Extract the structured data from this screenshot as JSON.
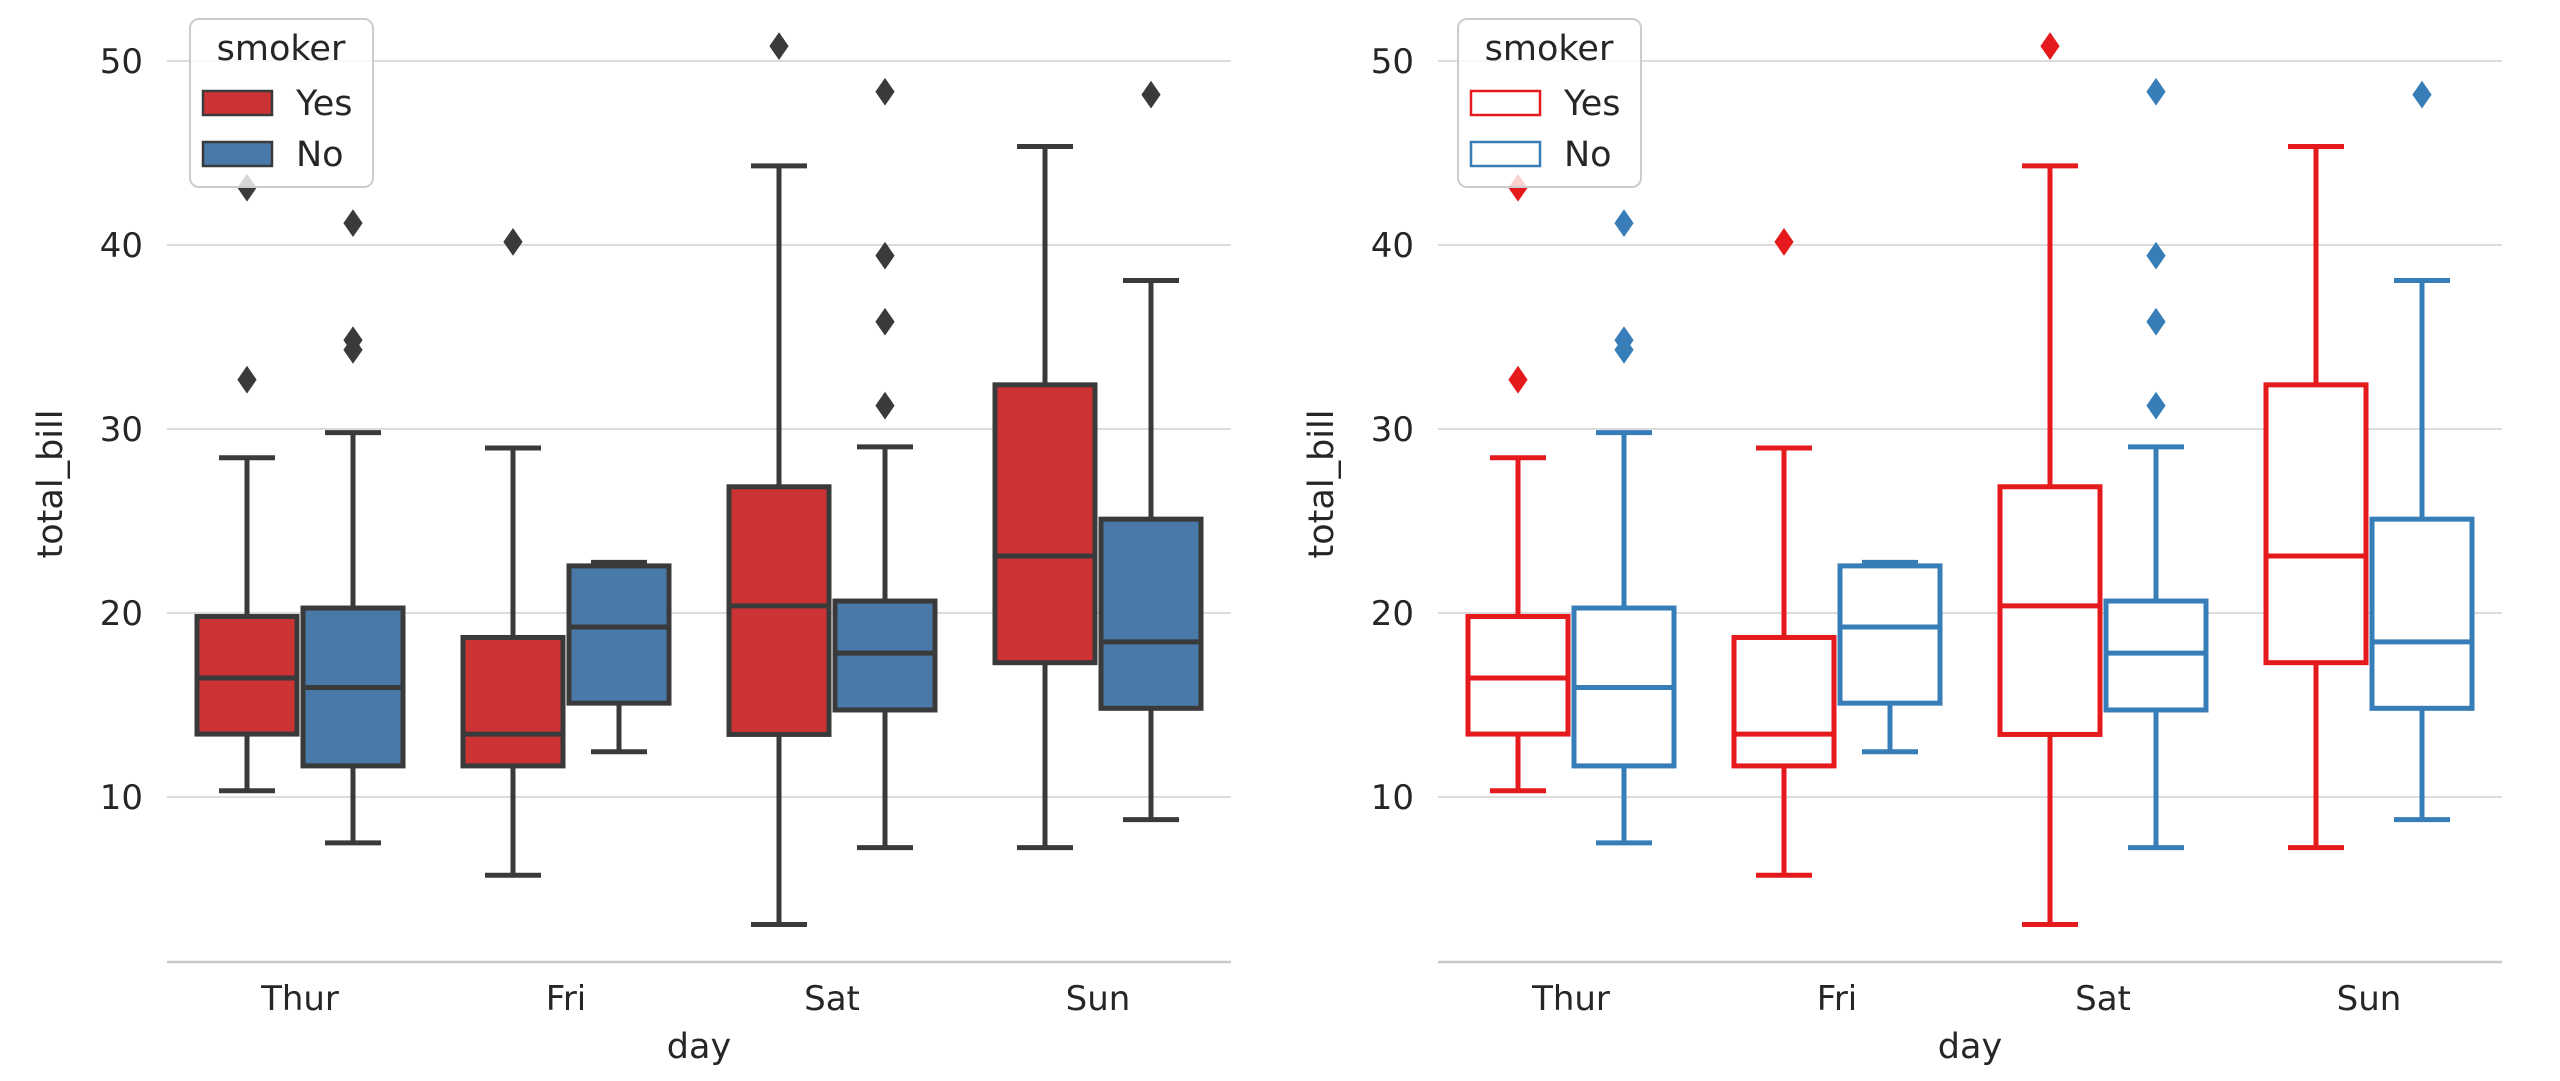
{
  "figure": {
    "background": "#FFFFFF",
    "text_color": "#262626",
    "grid_color": "#DCDCDC",
    "spine_color": "#C9C9C9",
    "legend_border_color": "#CCCCCC",
    "dark_line_color": "#3A3A3A",
    "accent_red": "#E41A1C",
    "accent_blue": "#377EB8",
    "desaturated_red": "#CB3334",
    "desaturated_blue": "#4979A8"
  },
  "chart_data": [
    {
      "panel": "left",
      "type": "boxplot",
      "style": "filled",
      "title": "",
      "xlabel": "day",
      "ylabel": "total_bill",
      "categories": [
        "Thur",
        "Fri",
        "Sat",
        "Sun"
      ],
      "yticks": [
        10,
        20,
        30,
        40,
        50
      ],
      "ylim": [
        1.0,
        53.0
      ],
      "grid": true,
      "legend": {
        "title": "smoker",
        "position": "upper left",
        "labels": [
          "Yes",
          "No"
        ]
      },
      "hue": "smoker",
      "series": [
        {
          "name": "Yes",
          "fill": "#CB3334",
          "stroke": "#3A3A3A",
          "flier_color": "#3A3A3A",
          "boxes": [
            {
              "category": "Thur",
              "whislo": 10.34,
              "q1": 13.42,
              "med": 16.47,
              "q3": 19.81,
              "whishi": 28.44,
              "outliers": [
                32.68,
                43.11
              ]
            },
            {
              "category": "Fri",
              "whislo": 5.75,
              "q1": 11.69,
              "med": 13.42,
              "q3": 18.67,
              "whishi": 28.97,
              "outliers": [
                40.17
              ]
            },
            {
              "category": "Sat",
              "whislo": 3.07,
              "q1": 13.4,
              "med": 20.39,
              "q3": 26.86,
              "whishi": 44.3,
              "outliers": [
                50.81
              ]
            },
            {
              "category": "Sun",
              "whislo": 7.25,
              "q1": 17.3,
              "med": 23.1,
              "q3": 32.4,
              "whishi": 45.35,
              "outliers": []
            }
          ]
        },
        {
          "name": "No",
          "fill": "#4979A8",
          "stroke": "#3A3A3A",
          "flier_color": "#3A3A3A",
          "boxes": [
            {
              "category": "Thur",
              "whislo": 7.51,
              "q1": 11.69,
              "med": 15.95,
              "q3": 20.27,
              "whishi": 29.8,
              "outliers": [
                34.3,
                34.83,
                41.19
              ]
            },
            {
              "category": "Fri",
              "whislo": 12.46,
              "q1": 15.1,
              "med": 19.24,
              "q3": 22.56,
              "whishi": 22.75,
              "outliers": []
            },
            {
              "category": "Sat",
              "whislo": 7.25,
              "q1": 14.73,
              "med": 17.82,
              "q3": 20.65,
              "whishi": 29.03,
              "outliers": [
                31.27,
                35.83,
                39.42,
                48.33
              ]
            },
            {
              "category": "Sun",
              "whislo": 8.77,
              "q1": 14.82,
              "med": 18.43,
              "q3": 25.1,
              "whishi": 38.07,
              "outliers": [
                48.17
              ]
            }
          ]
        }
      ]
    },
    {
      "panel": "right",
      "type": "boxplot",
      "style": "outline",
      "title": "",
      "xlabel": "day",
      "ylabel": "total_bill",
      "categories": [
        "Thur",
        "Fri",
        "Sat",
        "Sun"
      ],
      "yticks": [
        10,
        20,
        30,
        40,
        50
      ],
      "ylim": [
        1.0,
        53.0
      ],
      "grid": true,
      "legend": {
        "title": "smoker",
        "position": "upper left",
        "labels": [
          "Yes",
          "No"
        ]
      },
      "hue": "smoker",
      "series": [
        {
          "name": "Yes",
          "fill": "#FFFFFF",
          "stroke": "#E41A1C",
          "flier_color": "#E41A1C",
          "boxes": [
            {
              "category": "Thur",
              "whislo": 10.34,
              "q1": 13.42,
              "med": 16.47,
              "q3": 19.81,
              "whishi": 28.44,
              "outliers": [
                32.68,
                43.11
              ]
            },
            {
              "category": "Fri",
              "whislo": 5.75,
              "q1": 11.69,
              "med": 13.42,
              "q3": 18.67,
              "whishi": 28.97,
              "outliers": [
                40.17
              ]
            },
            {
              "category": "Sat",
              "whislo": 3.07,
              "q1": 13.4,
              "med": 20.39,
              "q3": 26.86,
              "whishi": 44.3,
              "outliers": [
                50.81
              ]
            },
            {
              "category": "Sun",
              "whislo": 7.25,
              "q1": 17.3,
              "med": 23.1,
              "q3": 32.4,
              "whishi": 45.35,
              "outliers": []
            }
          ]
        },
        {
          "name": "No",
          "fill": "#FFFFFF",
          "stroke": "#377EB8",
          "flier_color": "#377EB8",
          "boxes": [
            {
              "category": "Thur",
              "whislo": 7.51,
              "q1": 11.69,
              "med": 15.95,
              "q3": 20.27,
              "whishi": 29.8,
              "outliers": [
                34.3,
                34.83,
                41.19
              ]
            },
            {
              "category": "Fri",
              "whislo": 12.46,
              "q1": 15.1,
              "med": 19.24,
              "q3": 22.56,
              "whishi": 22.75,
              "outliers": []
            },
            {
              "category": "Sat",
              "whislo": 7.25,
              "q1": 14.73,
              "med": 17.82,
              "q3": 20.65,
              "whishi": 29.03,
              "outliers": [
                31.27,
                35.83,
                39.42,
                48.33
              ]
            },
            {
              "category": "Sun",
              "whislo": 8.77,
              "q1": 14.82,
              "med": 18.43,
              "q3": 25.1,
              "whishi": 38.07,
              "outliers": [
                48.17
              ]
            }
          ]
        }
      ]
    }
  ]
}
